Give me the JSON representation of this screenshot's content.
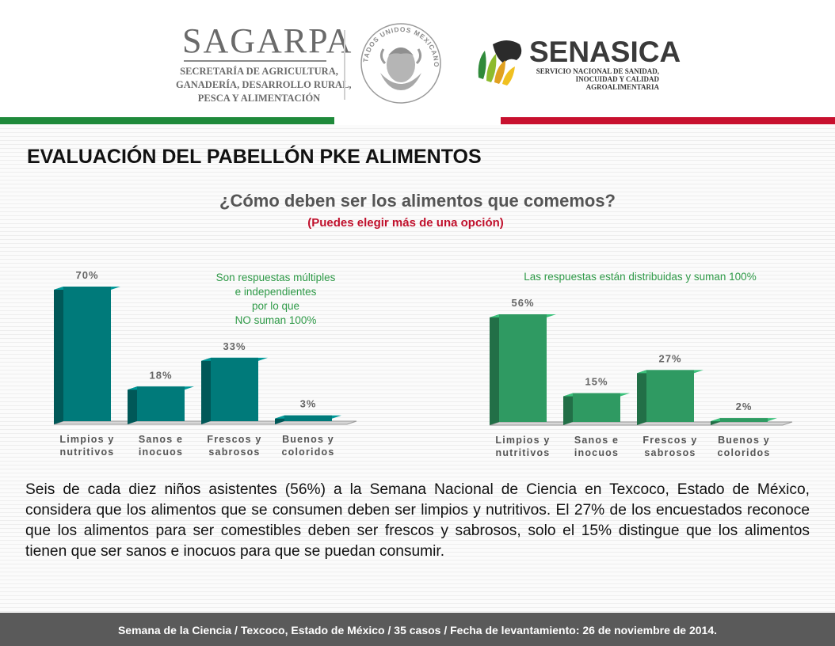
{
  "header": {
    "sagarpa": {
      "name": "SAGARPA",
      "lines": [
        "SECRETARÍA DE AGRICULTURA,",
        "GANADERÍA, DESARROLLO RURAL,",
        "PESCA Y ALIMENTACIÓN"
      ]
    },
    "seal": {
      "text": "ESTADOS UNIDOS MEXICANOS"
    },
    "senasica": {
      "name": "SENASICA",
      "lines": [
        "SERVICIO NACIONAL DE SANIDAD,",
        "INOCUIDAD Y CALIDAD",
        "AGROALIMENTARIA"
      ]
    },
    "colors": {
      "green": "#1f8a3b",
      "red": "#c8102e"
    }
  },
  "title": "EVALUACIÓN DEL PABELLÓN PKE ALIMENTOS",
  "question": "¿Cómo deben ser los alimentos que comemos?",
  "question_sub": "(Puedes elegir más de una opción)",
  "notes": {
    "left": [
      "Son respuestas múltiples",
      "e independientes",
      "por lo que",
      "NO suman 100%"
    ],
    "right": "Las respuestas están distribuidas y suman 100%"
  },
  "chart_data": [
    {
      "type": "bar",
      "categories": [
        [
          "Limpios y",
          "nutritivos"
        ],
        [
          "Sanos e",
          "inocuos"
        ],
        [
          "Frescos y",
          "sabrosos"
        ],
        [
          "Buenos y",
          "coloridos"
        ]
      ],
      "values": [
        70,
        18,
        33,
        3
      ],
      "labels": [
        "70%",
        "18%",
        "33%",
        "3%"
      ],
      "ylim": [
        0,
        70
      ],
      "color": "#007a7a",
      "grid": false,
      "style": "3d"
    },
    {
      "type": "bar",
      "categories": [
        [
          "Limpios y",
          "nutritivos"
        ],
        [
          "Sanos e",
          "inocuos"
        ],
        [
          "Frescos y",
          "sabrosos"
        ],
        [
          "Buenos y",
          "coloridos"
        ]
      ],
      "values": [
        56,
        15,
        27,
        2
      ],
      "labels": [
        "56%",
        "15%",
        "27%",
        "2%"
      ],
      "ylim": [
        0,
        56
      ],
      "color": "#2f9a62",
      "grid": false,
      "style": "3d"
    }
  ],
  "paragraph": "Seis de cada diez niños asistentes (56%) a la Semana Nacional de Ciencia en Texcoco, Estado de México, considera que los alimentos que se consumen deben ser limpios y nutritivos. El 27% de los encuestados reconoce que los alimentos para ser comestibles deben ser frescos y sabrosos, solo el 15% distingue que los alimentos tienen que ser sanos e inocuos para que se puedan consumir.",
  "footer": "Semana de la Ciencia / Texcoco, Estado de México / 35 casos / Fecha de levantamiento: 26 de noviembre de 2014."
}
